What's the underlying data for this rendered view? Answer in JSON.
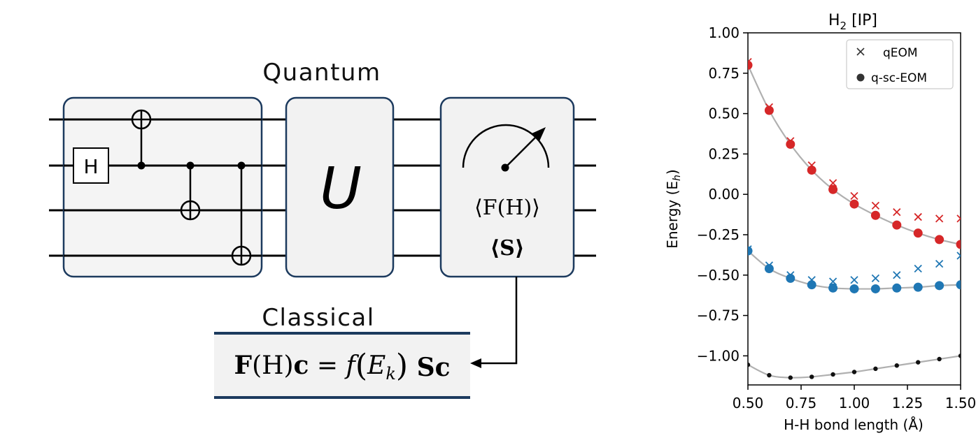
{
  "diagram": {
    "quantum_label": "Quantum",
    "classical_label": "Classical",
    "hadamard_label": "H",
    "unitary_label": "U",
    "measure_f": "⟨F(H)⟩",
    "measure_s": "⟨S⟩",
    "equation": {
      "F": "F",
      "H_paren": "(H)",
      "c": "c",
      "eq": " = ",
      "f": "f",
      "E": "E",
      "k": "k",
      "S": "S",
      "c2": "c"
    }
  },
  "colors": {
    "box_fill": "#f2f2f2",
    "box_stroke": "#1c3a5e",
    "wire": "#000000",
    "eq_bar": "#1c3a5e",
    "red": "#d62728",
    "blue": "#1f77b4",
    "black_series": "#111111",
    "curve": "#b0b0b0"
  },
  "chart_data": {
    "type": "scatter",
    "title_main": "H",
    "title_sub": "2",
    "title_rest": " [IP]",
    "xlabel": "H-H bond length (Å)",
    "ylabel_main": "Energy (E",
    "ylabel_sub": "h",
    "ylabel_end": ")",
    "xlim": [
      0.5,
      1.5
    ],
    "ylim": [
      -1.18,
      1.0
    ],
    "xticks": [
      0.5,
      0.75,
      1.0,
      1.25,
      1.5
    ],
    "xtick_labels": [
      "0.50",
      "0.75",
      "1.00",
      "1.25",
      "1.50"
    ],
    "yticks": [
      1.0,
      0.75,
      0.5,
      0.25,
      0.0,
      -0.25,
      -0.5,
      -0.75,
      -1.0
    ],
    "ytick_labels": [
      "1.00",
      "0.75",
      "0.50",
      "0.25",
      "0.00",
      "−0.25",
      "−0.50",
      "−0.75",
      "−1.00"
    ],
    "legend": {
      "position": "top-right",
      "entries": [
        {
          "label": "qEOM",
          "marker": "x"
        },
        {
          "label": "q-sc-EOM",
          "marker": "o"
        }
      ]
    },
    "x": [
      0.5,
      0.6,
      0.7,
      0.8,
      0.9,
      1.0,
      1.1,
      1.2,
      1.3,
      1.4,
      1.5
    ],
    "series": [
      {
        "method": "q-sc-EOM",
        "color": "red",
        "marker": "o",
        "values": [
          0.8,
          0.52,
          0.31,
          0.15,
          0.03,
          -0.06,
          -0.13,
          -0.19,
          -0.24,
          -0.28,
          -0.31
        ]
      },
      {
        "method": "qEOM",
        "color": "red",
        "marker": "x",
        "values": [
          0.82,
          0.54,
          0.33,
          0.18,
          0.07,
          -0.01,
          -0.07,
          -0.11,
          -0.14,
          -0.15,
          -0.15
        ]
      },
      {
        "method": "q-sc-EOM",
        "color": "blue",
        "marker": "o",
        "values": [
          -0.35,
          -0.46,
          -0.52,
          -0.56,
          -0.58,
          -0.585,
          -0.585,
          -0.58,
          -0.575,
          -0.565,
          -0.56
        ]
      },
      {
        "method": "qEOM",
        "color": "blue",
        "marker": "x",
        "values": [
          -0.34,
          -0.44,
          -0.5,
          -0.53,
          -0.54,
          -0.53,
          -0.52,
          -0.5,
          -0.46,
          -0.43,
          -0.38
        ]
      },
      {
        "method": "q-sc-EOM",
        "color": "black_series",
        "marker": "small-o",
        "values": [
          -1.055,
          -1.12,
          -1.135,
          -1.13,
          -1.115,
          -1.1,
          -1.08,
          -1.06,
          -1.04,
          -1.02,
          -1.0
        ]
      }
    ],
    "curves": [
      {
        "color": "curve",
        "values": [
          0.8,
          0.52,
          0.31,
          0.15,
          0.03,
          -0.06,
          -0.13,
          -0.19,
          -0.24,
          -0.28,
          -0.31
        ]
      },
      {
        "color": "curve",
        "values": [
          -0.35,
          -0.46,
          -0.52,
          -0.56,
          -0.58,
          -0.585,
          -0.585,
          -0.58,
          -0.575,
          -0.565,
          -0.56
        ]
      },
      {
        "color": "curve",
        "values": [
          -1.055,
          -1.12,
          -1.135,
          -1.13,
          -1.115,
          -1.1,
          -1.08,
          -1.06,
          -1.04,
          -1.02,
          -1.0
        ]
      }
    ]
  }
}
